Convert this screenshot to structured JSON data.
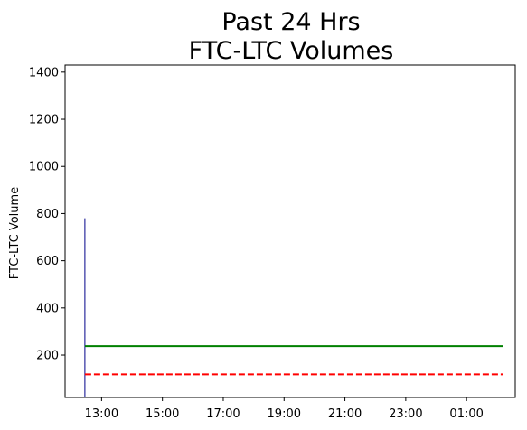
{
  "chart_data": {
    "type": "line",
    "title_lines": [
      "Past 24 Hrs",
      "FTC-LTC Volumes"
    ],
    "xlabel": "",
    "ylabel": "FTC-LTC Volume",
    "x_unit": "hours (time of day, continuing past midnight)",
    "x_ticks": [
      {
        "value": 13,
        "label": "13:00"
      },
      {
        "value": 15,
        "label": "15:00"
      },
      {
        "value": 17,
        "label": "17:00"
      },
      {
        "value": 19,
        "label": "19:00"
      },
      {
        "value": 21,
        "label": "21:00"
      },
      {
        "value": 23,
        "label": "23:00"
      },
      {
        "value": 25,
        "label": "01:00"
      }
    ],
    "xlim": [
      11.8,
      26.6
    ],
    "ylim": [
      20,
      1430
    ],
    "y_ticks": [
      200,
      400,
      600,
      800,
      1000,
      1200,
      1400
    ],
    "grid": false,
    "series": [
      {
        "style": "line",
        "color": "#00008b",
        "points": [
          [
            12.45,
            20
          ],
          [
            12.45,
            780
          ]
        ]
      },
      {
        "style": "line",
        "color": "#008000",
        "points": [
          [
            12.45,
            238
          ],
          [
            26.2,
            238
          ]
        ]
      },
      {
        "style": "dashed",
        "color": "#ff0000",
        "points": [
          [
            12.45,
            118
          ],
          [
            26.2,
            118
          ]
        ]
      }
    ]
  }
}
